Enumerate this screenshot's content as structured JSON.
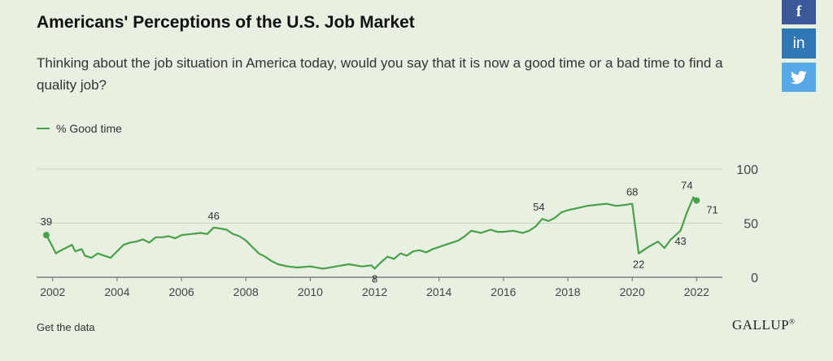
{
  "header": {
    "title": "Americans' Perceptions of the U.S. Job Market",
    "subtitle": "Thinking about the job situation in America today, would you say that it is now a good time or a bad time to find a quality job?"
  },
  "share": {
    "facebook_label": "f",
    "linkedin_label": "in",
    "twitter_icon": "twitter-bird-icon"
  },
  "footer": {
    "get_data_label": "Get the data",
    "logo_text": "GALLUP",
    "logo_mark": "®"
  },
  "colors": {
    "line": "#4aa04a",
    "grid": "#c9d5c3",
    "background": "#e7f0e1"
  },
  "chart_data": {
    "type": "line",
    "title": "",
    "xlabel": "",
    "ylabel": "",
    "x_ticks": [
      2002,
      2004,
      2006,
      2008,
      2010,
      2012,
      2014,
      2016,
      2018,
      2020,
      2022
    ],
    "y_ticks": [
      0,
      50,
      100
    ],
    "xlim": [
      2001.5,
      2022.8
    ],
    "ylim": [
      0,
      100
    ],
    "grid": "horizontal",
    "legend": "top-left",
    "series": [
      {
        "name": "% Good time",
        "x": [
          2001.8,
          2002.0,
          2002.1,
          2002.2,
          2002.4,
          2002.6,
          2002.7,
          2002.9,
          2003.0,
          2003.2,
          2003.4,
          2003.6,
          2003.8,
          2004.0,
          2004.2,
          2004.4,
          2004.6,
          2004.8,
          2005.0,
          2005.2,
          2005.4,
          2005.6,
          2005.8,
          2006.0,
          2006.3,
          2006.6,
          2006.8,
          2007.0,
          2007.2,
          2007.4,
          2007.6,
          2007.8,
          2008.0,
          2008.2,
          2008.4,
          2008.6,
          2008.8,
          2009.0,
          2009.3,
          2009.6,
          2010.0,
          2010.4,
          2010.8,
          2011.2,
          2011.6,
          2011.9,
          2012.0,
          2012.2,
          2012.4,
          2012.6,
          2012.8,
          2013.0,
          2013.2,
          2013.4,
          2013.6,
          2013.8,
          2014.0,
          2014.2,
          2014.4,
          2014.6,
          2014.8,
          2015.0,
          2015.3,
          2015.6,
          2015.8,
          2016.0,
          2016.3,
          2016.6,
          2016.8,
          2017.0,
          2017.2,
          2017.4,
          2017.6,
          2017.8,
          2018.0,
          2018.3,
          2018.6,
          2018.9,
          2019.2,
          2019.5,
          2019.8,
          2020.0,
          2020.2,
          2020.5,
          2020.8,
          2021.0,
          2021.2,
          2021.5,
          2021.7,
          2021.9,
          2022.0
        ],
        "y": [
          39,
          28,
          22,
          24,
          27,
          30,
          24,
          26,
          20,
          18,
          22,
          20,
          18,
          24,
          30,
          32,
          33,
          35,
          32,
          37,
          37,
          38,
          36,
          39,
          40,
          41,
          40,
          46,
          45,
          44,
          40,
          38,
          34,
          28,
          22,
          19,
          15,
          12,
          10,
          9,
          10,
          8,
          10,
          12,
          10,
          11,
          8,
          14,
          19,
          17,
          22,
          20,
          24,
          25,
          23,
          26,
          28,
          30,
          32,
          34,
          38,
          43,
          41,
          44,
          42,
          42,
          43,
          41,
          43,
          47,
          54,
          52,
          55,
          60,
          62,
          64,
          66,
          67,
          68,
          66,
          67,
          68,
          22,
          28,
          33,
          27,
          35,
          43,
          60,
          74,
          71
        ]
      }
    ],
    "annotations": [
      {
        "label": "39",
        "x": 2001.8,
        "y": 39
      },
      {
        "label": "46",
        "x": 2007.0,
        "y": 46
      },
      {
        "label": "8",
        "x": 2012.0,
        "y": 8
      },
      {
        "label": "54",
        "x": 2017.2,
        "y": 54
      },
      {
        "label": "68",
        "x": 2020.0,
        "y": 68
      },
      {
        "label": "22",
        "x": 2020.2,
        "y": 22
      },
      {
        "label": "43",
        "x": 2021.5,
        "y": 43
      },
      {
        "label": "74",
        "x": 2021.9,
        "y": 74
      },
      {
        "label": "71",
        "x": 2022.0,
        "y": 71
      }
    ]
  }
}
